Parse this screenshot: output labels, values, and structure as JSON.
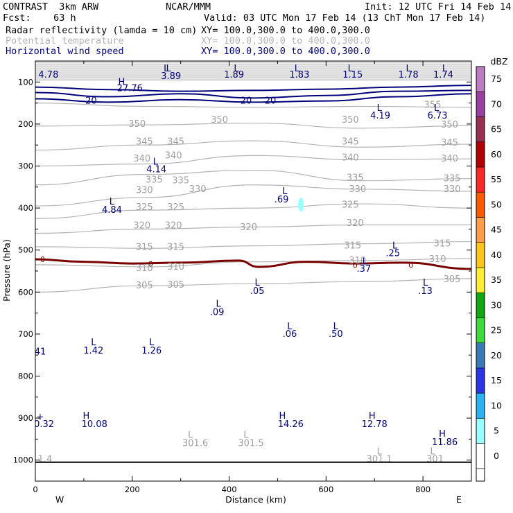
{
  "header": {
    "line1_left": "CONTRAST  3km ARW",
    "line1_center": "NCAR/MMM",
    "line1_right": "Init: 12 UTC Fri 14 Feb 14",
    "line2_left": "Fcst:    63 h",
    "line2_right": "Valid: 03 UTC Mon 17 Feb 14 (13 ChT Mon 17 Feb 14)",
    "fields": [
      {
        "name": "Radar reflectivity (lamda = 10 cm)",
        "xy": "XY= 100.0,300.0 to 400.0,300.0",
        "color": "#000000"
      },
      {
        "name": "Potential temperature",
        "xy": "XY= 100.0,300.0 to 400.0,300.0",
        "color": "#b4b4b4"
      },
      {
        "name": "Horizontal wind speed",
        "xy": "XY= 100.0,300.0 to 400.0,300.0",
        "color": "#00007a"
      }
    ]
  },
  "chart_data": {
    "type": "cross-section",
    "xlabel": "Distance (km)",
    "ylabel": "Pressure (hPa)",
    "xlim": [
      0,
      900
    ],
    "ylim_top_to_bottom": [
      50,
      1050
    ],
    "x_ticks": [
      0,
      200,
      400,
      600,
      800
    ],
    "y_ticks": [
      100,
      200,
      300,
      400,
      500,
      600,
      700,
      800,
      900,
      1000
    ],
    "west_label": "W",
    "east_label": "E",
    "colorbar": {
      "unit": "dBZ",
      "levels": [
        0,
        5,
        10,
        15,
        20,
        25,
        30,
        35,
        40,
        45,
        50,
        55,
        60,
        65,
        70,
        75
      ],
      "colors": [
        "#ffffff",
        "#98ffff",
        "#2ab3f4",
        "#2b33e6",
        "#3a78b8",
        "#3ddb3d",
        "#0fa80f",
        "#ffee33",
        "#ffc61a",
        "#ff9d4a",
        "#ff5a00",
        "#ff2626",
        "#b40000",
        "#9a3050",
        "#9a3ea0",
        "#bb7bc0"
      ]
    },
    "theta_contours": [
      {
        "value": 355,
        "p": [
          150,
          158,
          160,
          158,
          160
        ],
        "labels": [
          {
            "x": 820,
            "p": 155,
            "text": "355"
          }
        ]
      },
      {
        "value": 350,
        "p": [
          205,
          202,
          198,
          210,
          204
        ],
        "labels": [
          {
            "x": 210,
            "p": 200,
            "text": "350"
          },
          {
            "x": 380,
            "p": 190,
            "text": "350"
          },
          {
            "x": 650,
            "p": 190,
            "text": "350"
          },
          {
            "x": 855,
            "p": 202,
            "text": "350"
          }
        ]
      },
      {
        "value": 345,
        "p": [
          262,
          250,
          240,
          255,
          248
        ],
        "labels": [
          {
            "x": 225,
            "p": 242,
            "text": "345"
          },
          {
            "x": 290,
            "p": 242,
            "text": "345"
          },
          {
            "x": 650,
            "p": 242,
            "text": "345"
          },
          {
            "x": 855,
            "p": 245,
            "text": "345"
          }
        ]
      },
      {
        "value": 340,
        "p": [
          300,
          295,
          275,
          285,
          283
        ],
        "labels": [
          {
            "x": 220,
            "p": 283,
            "text": "340"
          },
          {
            "x": 285,
            "p": 275,
            "text": "340"
          },
          {
            "x": 650,
            "p": 280,
            "text": "340"
          },
          {
            "x": 855,
            "p": 283,
            "text": "340"
          }
        ]
      },
      {
        "value": 335,
        "p": [
          345,
          320,
          310,
          335,
          330
        ],
        "labels": [
          {
            "x": 245,
            "p": 333,
            "text": "335"
          },
          {
            "x": 300,
            "p": 335,
            "text": "335"
          },
          {
            "x": 660,
            "p": 328,
            "text": "335"
          },
          {
            "x": 860,
            "p": 330,
            "text": "335"
          }
        ]
      },
      {
        "value": 330,
        "p": [
          395,
          375,
          345,
          355,
          360
        ],
        "labels": [
          {
            "x": 225,
            "p": 358,
            "text": "330"
          },
          {
            "x": 335,
            "p": 355,
            "text": "330"
          },
          {
            "x": 665,
            "p": 355,
            "text": "330"
          },
          {
            "x": 860,
            "p": 355,
            "text": "330"
          }
        ]
      },
      {
        "value": 325,
        "p": [
          425,
          405,
          400,
          390,
          400
        ],
        "labels": [
          {
            "x": 225,
            "p": 398,
            "text": "325"
          },
          {
            "x": 290,
            "p": 398,
            "text": "325"
          },
          {
            "x": 650,
            "p": 392,
            "text": "325"
          }
        ]
      },
      {
        "value": 320,
        "p": [
          460,
          450,
          445,
          440,
          440
        ],
        "labels": [
          {
            "x": 220,
            "p": 442,
            "text": "320"
          },
          {
            "x": 285,
            "p": 442,
            "text": "320"
          },
          {
            "x": 440,
            "p": 446,
            "text": "320"
          },
          {
            "x": 660,
            "p": 436,
            "text": "320"
          }
        ]
      },
      {
        "value": 315,
        "p": [
          492,
          496,
          490,
          485,
          480
        ],
        "labels": [
          {
            "x": 225,
            "p": 493,
            "text": "315"
          },
          {
            "x": 290,
            "p": 493,
            "text": "315"
          },
          {
            "x": 655,
            "p": 490,
            "text": "315"
          },
          {
            "x": 840,
            "p": 485,
            "text": "315"
          }
        ]
      },
      {
        "value": 310,
        "p": [
          535,
          540,
          528,
          525,
          520
        ],
        "labels": [
          {
            "x": 225,
            "p": 543,
            "text": "310"
          },
          {
            "x": 290,
            "p": 540,
            "text": "310"
          },
          {
            "x": 665,
            "p": 525,
            "text": "310"
          },
          {
            "x": 830,
            "p": 522,
            "text": "310"
          }
        ]
      },
      {
        "value": 305,
        "p": [
          600,
          585,
          580,
          575,
          568
        ],
        "labels": [
          {
            "x": 225,
            "p": 585,
            "text": "305"
          },
          {
            "x": 290,
            "p": 583,
            "text": "305"
          },
          {
            "x": 860,
            "p": 570,
            "text": "305"
          }
        ]
      }
    ],
    "wind_contours": [
      {
        "value": 20,
        "p": [
          112,
          118,
          122,
          120,
          117,
          112,
          108
        ]
      },
      {
        "value": 20,
        "p": [
          125,
          135,
          128,
          138,
          132,
          122,
          120
        ]
      },
      {
        "value": 20,
        "p": [
          140,
          148,
          142,
          148,
          145,
          135,
          128
        ]
      }
    ],
    "wind_labels": [
      {
        "x": 115,
        "p": 145,
        "text": "20"
      },
      {
        "x": 435,
        "p": 145,
        "text": "20"
      },
      {
        "x": 485,
        "p": 145,
        "text": "20"
      }
    ],
    "zero_dbz_line": {
      "value": 0,
      "x": [
        0,
        100,
        200,
        300,
        420,
        460,
        560,
        660,
        760,
        900
      ],
      "p": [
        522,
        528,
        532,
        530,
        525,
        540,
        528,
        532,
        530,
        545
      ],
      "labels": [
        {
          "x": 15,
          "p": 522,
          "text": "0"
        },
        {
          "x": 238,
          "p": 533,
          "text": "0"
        },
        {
          "x": 660,
          "p": 536,
          "text": "0"
        },
        {
          "x": 775,
          "p": 535,
          "text": "0"
        }
      ]
    },
    "reflectivity_cells": [
      {
        "x": 548,
        "p": 392,
        "dbz": 5
      }
    ],
    "hl_markers": [
      {
        "kind": "L",
        "x": 270,
        "p": 68,
        "value": "4.78",
        "vx": 27,
        "vp": 83,
        "color": "navy"
      },
      {
        "kind": "L",
        "x": 275,
        "p": 68,
        "value": "3.89",
        "vx": 280,
        "vp": 86,
        "color": "navy"
      },
      {
        "kind": "L",
        "x": 415,
        "p": 68,
        "value": "1.89",
        "vx": 410,
        "vp": 83,
        "color": "navy"
      },
      {
        "kind": "L",
        "x": 540,
        "p": 68,
        "value": "1.83",
        "vx": 545,
        "vp": 83,
        "color": "navy"
      },
      {
        "kind": "L",
        "x": 650,
        "p": 68,
        "value": "1.15",
        "vx": 655,
        "vp": 83,
        "color": "navy"
      },
      {
        "kind": "L",
        "x": 770,
        "p": 68,
        "value": "1.78",
        "vx": 770,
        "vp": 83,
        "color": "navy"
      },
      {
        "kind": "L",
        "x": 845,
        "p": 68,
        "value": "1.74",
        "vx": 842,
        "vp": 83,
        "color": "navy"
      },
      {
        "kind": "H",
        "x": 178,
        "p": 100,
        "value": "27.76",
        "vx": 195,
        "vp": 115,
        "color": "navy"
      },
      {
        "kind": "L",
        "x": 710,
        "p": 162,
        "value": "4.19",
        "vx": 712,
        "vp": 180,
        "color": "navy"
      },
      {
        "kind": "L",
        "x": 828,
        "p": 162,
        "value": "6.73",
        "vx": 830,
        "vp": 180,
        "color": "navy"
      },
      {
        "kind": "L",
        "x": 248,
        "p": 290,
        "value": "4.14",
        "vx": 250,
        "vp": 308,
        "color": "navy"
      },
      {
        "kind": "L",
        "x": 515,
        "p": 360,
        "value": ".69",
        "vx": 508,
        "vp": 380,
        "color": "navy"
      },
      {
        "kind": "L",
        "x": 158,
        "p": 385,
        "value": "4.84",
        "vx": 158,
        "vp": 405,
        "color": "navy"
      },
      {
        "kind": "L",
        "x": 742,
        "p": 490,
        "value": ".25",
        "vx": 738,
        "vp": 508,
        "color": "navy"
      },
      {
        "kind": "L",
        "x": 680,
        "p": 528,
        "value": ".37",
        "vx": 678,
        "vp": 545,
        "color": "navy"
      },
      {
        "kind": "L",
        "x": 458,
        "p": 578,
        "value": ".05",
        "vx": 458,
        "vp": 598,
        "color": "navy"
      },
      {
        "kind": "L",
        "x": 805,
        "p": 578,
        "value": ".13",
        "vx": 805,
        "vp": 598,
        "color": "navy"
      },
      {
        "kind": "L",
        "x": 378,
        "p": 628,
        "value": ".09",
        "vx": 375,
        "vp": 648,
        "color": "navy"
      },
      {
        "kind": "L",
        "x": 525,
        "p": 682,
        "value": ".06",
        "vx": 525,
        "vp": 700,
        "color": "navy"
      },
      {
        "kind": "L",
        "x": 620,
        "p": 682,
        "value": ".50",
        "vx": 620,
        "vp": 700,
        "color": "navy"
      },
      {
        "kind": "L",
        "x": 120,
        "p": 720,
        "value": "1.42",
        "vx": 120,
        "vp": 740,
        "color": "navy"
      },
      {
        "kind": "L",
        "x": 240,
        "p": 720,
        "value": "1.26",
        "vx": 240,
        "vp": 740,
        "color": "navy"
      },
      {
        "kind": "H",
        "x": 105,
        "p": 895,
        "value": "10.08",
        "vx": 122,
        "vp": 915,
        "color": "navy"
      },
      {
        "kind": "H",
        "x": 510,
        "p": 895,
        "value": "14.26",
        "vx": 527,
        "vp": 915,
        "color": "navy"
      },
      {
        "kind": "H",
        "x": 695,
        "p": 895,
        "value": "12.78",
        "vx": 700,
        "vp": 915,
        "color": "navy"
      },
      {
        "kind": "H",
        "x": 840,
        "p": 938,
        "value": "11.86",
        "vx": 845,
        "vp": 958,
        "color": "navy"
      },
      {
        "kind": "L",
        "x": 320,
        "p": 940,
        "value": "301.6",
        "vx": 330,
        "vp": 960,
        "color": "gray"
      },
      {
        "kind": "L",
        "x": 435,
        "p": 940,
        "value": "301.5",
        "vx": 445,
        "vp": 960,
        "color": "gray"
      },
      {
        "kind": "L",
        "x": 710,
        "p": 980,
        "value": "301.1",
        "vx": 710,
        "vp": 998,
        "color": "gray"
      },
      {
        "kind": "L",
        "x": 820,
        "p": 980,
        "value": "301",
        "vx": 825,
        "vp": 998,
        "color": "gray"
      }
    ],
    "edge_labels": [
      {
        "x": 10,
        "p": 742,
        "text": "41",
        "color": "navy"
      },
      {
        "x": 18,
        "p": 915,
        "text": "0.32",
        "color": "navy"
      },
      {
        "x": 10,
        "p": 897,
        "text": "+",
        "color": "navy"
      },
      {
        "x": 20,
        "p": 998,
        "text": "1.4",
        "color": "gray"
      }
    ]
  }
}
